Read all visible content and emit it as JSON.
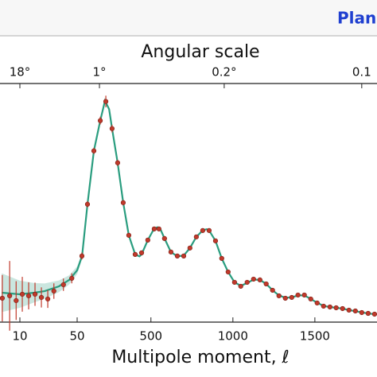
{
  "header": {
    "title": "Plan"
  },
  "chart_data": {
    "type": "cmb-spectrum",
    "top_axis_label": "Angular scale",
    "xlabel": "Multipole moment, ℓ",
    "xscale": "log-linear",
    "xscale_break": 50,
    "xlim": [
      2,
      2500
    ],
    "xticks": [
      10,
      50,
      500,
      1000,
      1500
    ],
    "top_xticks": [
      {
        "value": 10,
        "label": "18°"
      },
      {
        "value": 186,
        "label": "1°"
      },
      {
        "value": 947,
        "label": "0.2°"
      },
      {
        "value": 1786,
        "label": "0.1"
      }
    ],
    "ylim": [
      0,
      6000
    ],
    "series": [
      {
        "style": "line",
        "color": "#2a9d7f",
        "x": [
          6,
          10,
          15,
          20,
          30,
          40,
          50,
          80,
          113,
          152,
          191,
          220,
          245,
          263,
          297,
          331,
          365,
          404,
          430,
          443,
          481,
          520,
          540,
          560,
          583,
          622,
          661,
          700,
          738,
          777,
          816,
          840,
          855,
          894,
          932,
          971,
          1010,
          1048,
          1087,
          1126,
          1165,
          1203,
          1242,
          1281,
          1320,
          1359,
          1397,
          1436,
          1475,
          1514,
          1553,
          1592,
          1630,
          1669,
          1708,
          1747,
          1786,
          1825,
          1864,
          1900
        ],
        "values": [
          760,
          720,
          760,
          800,
          925,
          1090,
          1340,
          1708,
          3045,
          4424,
          5206,
          5720,
          5500,
          5000,
          4115,
          3086,
          2243,
          1749,
          1700,
          1750,
          2119,
          2420,
          2450,
          2380,
          2160,
          1811,
          1700,
          1720,
          1914,
          2202,
          2370,
          2400,
          2366,
          2099,
          1646,
          1296,
          1029,
          940,
          1010,
          1100,
          1090,
          988,
          823,
          690,
          630,
          640,
          690,
          690,
          600,
          500,
          420,
          390,
          370,
          350,
          310,
          285,
          250,
          225,
          205,
          190
        ],
        "spread": [
          500,
          350,
          250,
          200,
          150,
          120,
          100,
          80,
          0,
          0,
          0,
          0,
          0,
          0,
          0,
          0,
          0,
          0,
          0,
          0,
          0,
          0,
          0,
          0,
          0,
          0,
          0,
          0,
          0,
          0,
          0,
          0,
          0,
          0,
          0,
          0,
          0,
          0,
          0,
          0,
          0,
          0,
          0,
          0,
          0,
          0,
          0,
          0,
          0,
          0,
          0,
          0,
          0,
          0,
          0,
          0,
          0,
          0,
          0,
          0
        ]
      },
      {
        "style": "points",
        "color": "#c0392b",
        "x": [
          6.1,
          7.5,
          9,
          10.7,
          12.8,
          15.3,
          18.3,
          21.9,
          26,
          34,
          43,
          79,
          113,
          152,
          191,
          225,
          263,
          297,
          331,
          365,
          404,
          443,
          481,
          520,
          549,
          583,
          622,
          661,
          700,
          738,
          777,
          816,
          855,
          894,
          932,
          971,
          1010,
          1048,
          1087,
          1126,
          1165,
          1203,
          1242,
          1281,
          1320,
          1359,
          1397,
          1436,
          1475,
          1514,
          1553,
          1592,
          1630,
          1669,
          1708,
          1747,
          1786,
          1825,
          1864
        ],
        "values": [
          617,
          679,
          556,
          720,
          679,
          720,
          638,
          597,
          802,
          967,
          1132,
          1708,
          3045,
          4424,
          5206,
          5700,
          5000,
          4115,
          3086,
          2243,
          1749,
          1790,
          2119,
          2407,
          2407,
          2160,
          1811,
          1708,
          1708,
          1914,
          2202,
          2366,
          2366,
          2099,
          1646,
          1296,
          1029,
          926,
          1029,
          1111,
          1091,
          988,
          823,
          679,
          617,
          638,
          700,
          700,
          597,
          494,
          412,
          391,
          370,
          350,
          309,
          288,
          247,
          226,
          206
        ],
        "errors": [
          600,
          900,
          500,
          450,
          350,
          300,
          260,
          230,
          200,
          160,
          130,
          90,
          80,
          80,
          100,
          150,
          100,
          80,
          70,
          60,
          50,
          50,
          50,
          50,
          50,
          50,
          40,
          40,
          40,
          40,
          40,
          40,
          40,
          40,
          40,
          40,
          30,
          30,
          30,
          30,
          30,
          30,
          30,
          30,
          30,
          30,
          30,
          30,
          30,
          30,
          30,
          30,
          30,
          30,
          30,
          30,
          30,
          30,
          30
        ]
      }
    ]
  }
}
